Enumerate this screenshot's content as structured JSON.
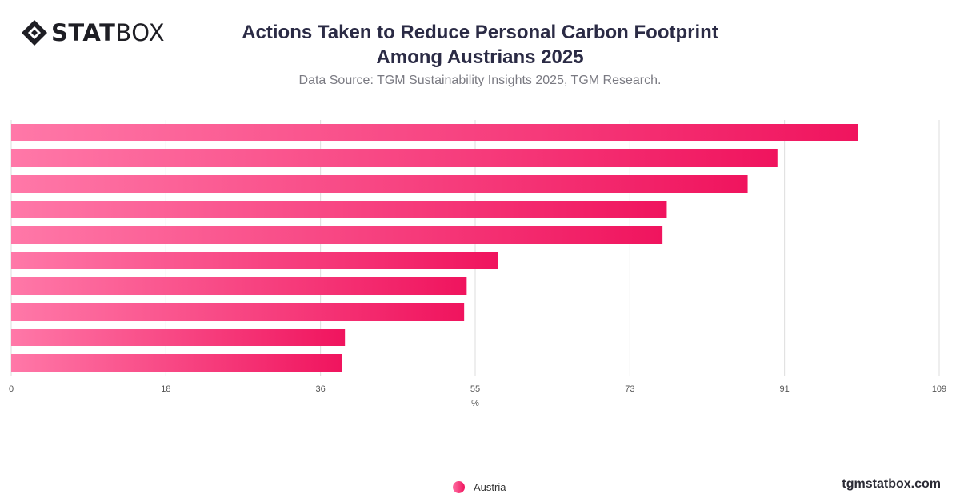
{
  "header": {
    "logo_bold": "STAT",
    "logo_light": "BOX",
    "title_line1": "Actions Taken to Reduce Personal Carbon Footprint",
    "title_line2": "Among Austrians 2025",
    "subtitle": "Data Source: TGM Sustainability Insights 2025, TGM Research."
  },
  "footer": {
    "brand": "tgmstatbox.com"
  },
  "colors": {
    "bar_start": "#ff78a8",
    "bar_end": "#f0145e",
    "grid": "#dddddd"
  },
  "chart_data": {
    "type": "bar",
    "orientation": "horizontal",
    "categories": [
      "",
      "",
      "",
      "",
      "",
      "",
      "",
      "",
      "",
      ""
    ],
    "series": [
      {
        "name": "Austria",
        "values": [
          99.5,
          90,
          86.5,
          77,
          76.5,
          57.2,
          53.5,
          53.2,
          39.2,
          38.9
        ]
      }
    ],
    "xlabel": "%",
    "xlim": [
      0,
      109
    ],
    "xticks": [
      "0",
      "18",
      "36",
      "55",
      "73",
      "91",
      "109"
    ],
    "tick_values": [
      0,
      18.17,
      36.33,
      54.5,
      72.67,
      90.83,
      109
    ],
    "grid": true,
    "legend_position": "bottom"
  }
}
